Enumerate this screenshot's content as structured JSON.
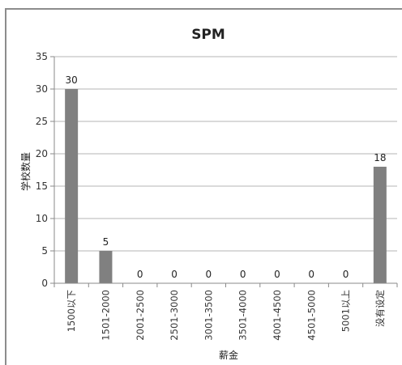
{
  "chart_data": {
    "type": "bar",
    "title": "SPM",
    "xlabel": "薪金",
    "ylabel": "学校数量",
    "categories": [
      "1500以下",
      "1501-2000",
      "2001-2500",
      "2501-3000",
      "3001-3500",
      "3501-4000",
      "4001-4500",
      "4501-5000",
      "5001以上",
      "没有设定"
    ],
    "values": [
      30,
      5,
      0,
      0,
      0,
      0,
      0,
      0,
      0,
      18
    ],
    "data_labels": [
      "30",
      "5",
      "0",
      "0",
      "0",
      "0",
      "0",
      "0",
      "0",
      "18"
    ],
    "ylim": [
      0,
      35
    ],
    "yticks": [
      "0",
      "5",
      "10",
      "15",
      "20",
      "25",
      "30",
      "35"
    ],
    "grid": true,
    "legend": "none",
    "colors": {
      "bar": "#808080",
      "grid": "#b5b5b5",
      "axis": "#8a8a8a",
      "frame": "#8c8c8c"
    }
  }
}
